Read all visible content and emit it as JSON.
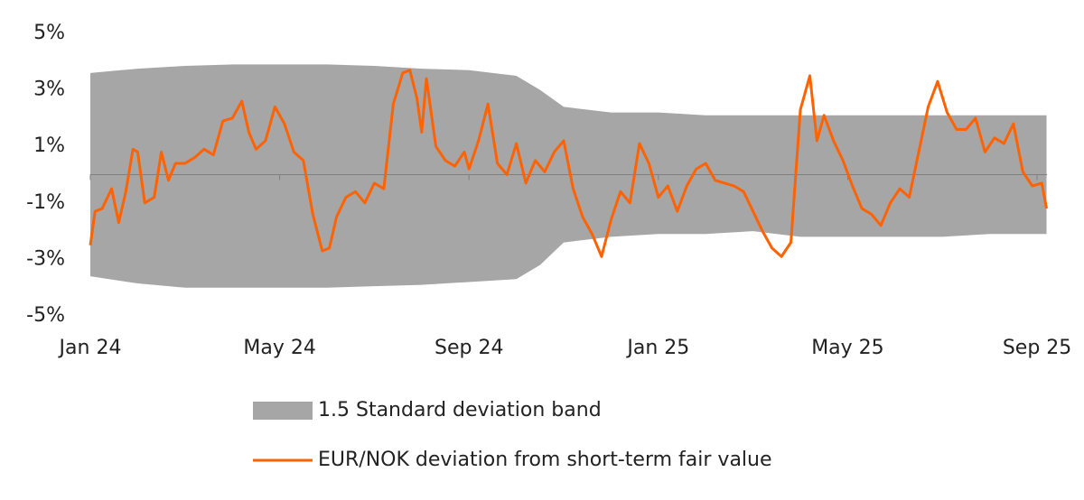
{
  "chart_data": {
    "type": "line",
    "xlim": [
      0,
      20.4
    ],
    "xticks": [
      {
        "value": 0,
        "label": "Jan 24"
      },
      {
        "value": 4,
        "label": "May 24"
      },
      {
        "value": 8,
        "label": "Sep 24"
      },
      {
        "value": 12,
        "label": "Jan 25"
      },
      {
        "value": 16,
        "label": "May 25"
      },
      {
        "value": 20,
        "label": "Sep 25"
      }
    ],
    "ylim": [
      -5,
      5
    ],
    "yticks": [
      {
        "value": 5,
        "label": "5%"
      },
      {
        "value": 3,
        "label": "3%"
      },
      {
        "value": 1,
        "label": "1%"
      },
      {
        "value": -1,
        "label": "-1%"
      },
      {
        "value": -3,
        "label": "-3%"
      },
      {
        "value": -5,
        "label": "-5%"
      }
    ],
    "series": [
      {
        "name": "1.5 Standard deviation band",
        "type": "band",
        "color": "#a6a6a6",
        "x": [
          0,
          1,
          2,
          3,
          4,
          5,
          6,
          7,
          8,
          9,
          9.5,
          10,
          11,
          12,
          13,
          14,
          15,
          16,
          17,
          18,
          19,
          20.2
        ],
        "upper": [
          3.6,
          3.75,
          3.85,
          3.9,
          3.9,
          3.9,
          3.85,
          3.75,
          3.7,
          3.5,
          3.0,
          2.4,
          2.2,
          2.2,
          2.1,
          2.1,
          2.1,
          2.1,
          2.1,
          2.1,
          2.1,
          2.1
        ],
        "lower": [
          -3.6,
          -3.85,
          -4.0,
          -4.0,
          -4.0,
          -4.0,
          -3.95,
          -3.9,
          -3.8,
          -3.7,
          -3.2,
          -2.4,
          -2.2,
          -2.1,
          -2.1,
          -2.0,
          -2.2,
          -2.2,
          -2.2,
          -2.2,
          -2.1,
          -2.1
        ]
      },
      {
        "name": "EUR/NOK deviation from short-term fair value",
        "type": "line",
        "color": "#ff6200",
        "x": [
          0,
          0.1,
          0.25,
          0.45,
          0.6,
          0.75,
          0.9,
          1.0,
          1.15,
          1.35,
          1.5,
          1.65,
          1.8,
          2.0,
          2.2,
          2.4,
          2.6,
          2.8,
          3.0,
          3.2,
          3.35,
          3.5,
          3.7,
          3.9,
          4.1,
          4.3,
          4.5,
          4.7,
          4.9,
          5.05,
          5.2,
          5.4,
          5.6,
          5.8,
          6.0,
          6.2,
          6.4,
          6.6,
          6.75,
          6.9,
          7.0,
          7.1,
          7.3,
          7.5,
          7.7,
          7.9,
          8.0,
          8.2,
          8.4,
          8.6,
          8.8,
          9.0,
          9.2,
          9.4,
          9.6,
          9.8,
          10.0,
          10.2,
          10.4,
          10.6,
          10.8,
          11.0,
          11.2,
          11.4,
          11.6,
          11.8,
          12.0,
          12.2,
          12.4,
          12.6,
          12.8,
          13.0,
          13.2,
          13.4,
          13.6,
          13.8,
          14.0,
          14.2,
          14.4,
          14.6,
          14.8,
          15.0,
          15.2,
          15.35,
          15.5,
          15.7,
          15.9,
          16.1,
          16.3,
          16.5,
          16.7,
          16.9,
          17.1,
          17.3,
          17.5,
          17.7,
          17.9,
          18.1,
          18.3,
          18.5,
          18.7,
          18.9,
          19.1,
          19.3,
          19.5,
          19.7,
          19.9,
          20.1,
          20.2
        ],
        "values": [
          -2.5,
          -1.3,
          -1.2,
          -0.5,
          -1.7,
          -0.6,
          0.9,
          0.8,
          -1.0,
          -0.8,
          0.8,
          -0.2,
          0.4,
          0.4,
          0.6,
          0.9,
          0.7,
          1.9,
          2.0,
          2.6,
          1.5,
          0.9,
          1.2,
          2.4,
          1.8,
          0.8,
          0.5,
          -1.4,
          -2.7,
          -2.6,
          -1.5,
          -0.8,
          -0.6,
          -1.0,
          -0.3,
          -0.5,
          2.5,
          3.6,
          3.7,
          2.7,
          1.5,
          3.4,
          1.0,
          0.5,
          0.3,
          0.8,
          0.2,
          1.2,
          2.5,
          0.4,
          0.0,
          1.1,
          -0.3,
          0.5,
          0.1,
          0.8,
          1.2,
          -0.5,
          -1.5,
          -2.1,
          -2.9,
          -1.6,
          -0.6,
          -1.0,
          1.1,
          0.4,
          -0.8,
          -0.4,
          -1.3,
          -0.4,
          0.2,
          0.4,
          -0.2,
          -0.3,
          -0.4,
          -0.6,
          -1.3,
          -2.0,
          -2.6,
          -2.9,
          -2.4,
          2.3,
          3.5,
          1.2,
          2.1,
          1.2,
          0.5,
          -0.4,
          -1.2,
          -1.4,
          -1.8,
          -1.0,
          -0.5,
          -0.8,
          0.8,
          2.4,
          3.3,
          2.2,
          1.6,
          1.6,
          2.0,
          0.8,
          1.3,
          1.1,
          1.8,
          0.1,
          -0.4,
          -0.3,
          -1.2
        ]
      }
    ]
  }
}
